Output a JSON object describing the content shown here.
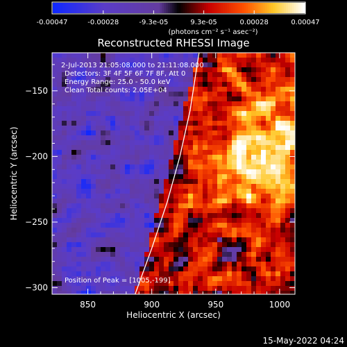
{
  "colorbar": {
    "tick_labels": [
      "-0.00047",
      "-0.00028",
      "-9.3e-05",
      "9.3e-05",
      "0.00028",
      "0.00047"
    ],
    "unit_label": "(photons cm⁻² s⁻¹ asec⁻²)",
    "vmin": -0.00047,
    "vmax": 0.00047
  },
  "chart_data": {
    "type": "heatmap",
    "title": "Reconstructed RHESSI Image",
    "xlabel": "Heliocentric X (arcsec)",
    "ylabel": "Heliocentric Y (arcsec)",
    "xlim": [
      822,
      1012
    ],
    "ylim": [
      -305,
      -121
    ],
    "x_ticks": [
      850,
      900,
      950,
      1000
    ],
    "y_ticks": [
      -150,
      -200,
      -250,
      -300
    ],
    "annotations": [
      "2-Jul-2013 21:05:08.000 to 21:11:08.000",
      "Detectors: 3F 4F 5F 6F 7F 8F, Att 0",
      "Energy Range: 25.0 - 50.0 keV",
      "Clean     Total counts: 2.05E+04"
    ],
    "peak_label": "Position of Peak = [1005,-199]",
    "peak_position": [
      1005,
      -199
    ],
    "limb_curve": [
      [
        887,
        -305
      ],
      [
        900,
        -270
      ],
      [
        912,
        -235
      ],
      [
        922,
        -200
      ],
      [
        930,
        -165
      ],
      [
        937,
        -121
      ]
    ],
    "grid": false
  },
  "footer": {
    "timestamp": "15-May-2022 04:24"
  }
}
